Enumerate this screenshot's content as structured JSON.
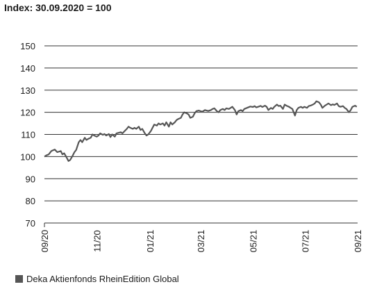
{
  "title": "Index: 30.09.2020 = 100",
  "colors": {
    "series": "#555555",
    "grid": "#333333",
    "axis": "#333333"
  },
  "chart_data": {
    "type": "line",
    "title": "Index: 30.09.2020 = 100",
    "xlabel": "",
    "ylabel": "",
    "ylim": [
      70,
      150
    ],
    "yticks": [
      70,
      80,
      90,
      100,
      110,
      120,
      130,
      140,
      150
    ],
    "xlim": [
      "2020-09-30",
      "2021-09-30"
    ],
    "xticks": [
      {
        "date": "2020-09-30",
        "label": "09/20"
      },
      {
        "date": "2020-11-30",
        "label": "11/20"
      },
      {
        "date": "2021-01-31",
        "label": "01/21"
      },
      {
        "date": "2021-03-31",
        "label": "03/21"
      },
      {
        "date": "2021-05-31",
        "label": "05/21"
      },
      {
        "date": "2021-07-31",
        "label": "07/21"
      },
      {
        "date": "2021-09-30",
        "label": "09/21"
      }
    ],
    "grid": "horizontal",
    "legend": "bottom-left",
    "series": [
      {
        "name": "Deka Aktienfonds RheinEdition Global",
        "points": [
          [
            "2020-09-30",
            100.0
          ],
          [
            "2020-10-02",
            100.5
          ],
          [
            "2020-10-05",
            101.0
          ],
          [
            "2020-10-08",
            102.5
          ],
          [
            "2020-10-12",
            103.2
          ],
          [
            "2020-10-15",
            102.0
          ],
          [
            "2020-10-19",
            102.5
          ],
          [
            "2020-10-21",
            101.0
          ],
          [
            "2020-10-23",
            101.5
          ],
          [
            "2020-10-26",
            99.5
          ],
          [
            "2020-10-28",
            98.0
          ],
          [
            "2020-10-30",
            98.5
          ],
          [
            "2020-11-02",
            100.5
          ],
          [
            "2020-11-04",
            102.0
          ],
          [
            "2020-11-06",
            103.0
          ],
          [
            "2020-11-09",
            106.5
          ],
          [
            "2020-11-11",
            107.5
          ],
          [
            "2020-11-13",
            106.5
          ],
          [
            "2020-11-16",
            108.5
          ],
          [
            "2020-11-18",
            107.5
          ],
          [
            "2020-11-20",
            108.0
          ],
          [
            "2020-11-23",
            108.5
          ],
          [
            "2020-11-25",
            110.0
          ],
          [
            "2020-11-27",
            109.5
          ],
          [
            "2020-11-30",
            109.0
          ],
          [
            "2020-12-02",
            109.5
          ],
          [
            "2020-12-04",
            110.5
          ],
          [
            "2020-12-07",
            109.8
          ],
          [
            "2020-12-09",
            110.2
          ],
          [
            "2020-12-11",
            109.5
          ],
          [
            "2020-12-14",
            110.2
          ],
          [
            "2020-12-16",
            108.8
          ],
          [
            "2020-12-18",
            110.0
          ],
          [
            "2020-12-21",
            109.0
          ],
          [
            "2020-12-23",
            110.5
          ],
          [
            "2020-12-28",
            111.0
          ],
          [
            "2020-12-30",
            110.5
          ],
          [
            "2021-01-04",
            112.5
          ],
          [
            "2021-01-06",
            113.5
          ],
          [
            "2021-01-08",
            113.0
          ],
          [
            "2021-01-11",
            112.5
          ],
          [
            "2021-01-13",
            113.0
          ],
          [
            "2021-01-15",
            112.5
          ],
          [
            "2021-01-18",
            113.5
          ],
          [
            "2021-01-20",
            112.0
          ],
          [
            "2021-01-22",
            112.5
          ],
          [
            "2021-01-25",
            110.5
          ],
          [
            "2021-01-27",
            109.5
          ],
          [
            "2021-01-29",
            110.0
          ],
          [
            "2021-02-01",
            111.5
          ],
          [
            "2021-02-03",
            113.0
          ],
          [
            "2021-02-05",
            114.5
          ],
          [
            "2021-02-08",
            114.0
          ],
          [
            "2021-02-10",
            115.0
          ],
          [
            "2021-02-12",
            114.5
          ],
          [
            "2021-02-15",
            115.0
          ],
          [
            "2021-02-17",
            114.0
          ],
          [
            "2021-02-19",
            115.5
          ],
          [
            "2021-02-22",
            113.5
          ],
          [
            "2021-02-24",
            115.5
          ],
          [
            "2021-02-26",
            114.5
          ],
          [
            "2021-03-01",
            115.5
          ],
          [
            "2021-03-03",
            116.5
          ],
          [
            "2021-03-05",
            117.0
          ],
          [
            "2021-03-08",
            117.5
          ],
          [
            "2021-03-10",
            119.0
          ],
          [
            "2021-03-12",
            120.0
          ],
          [
            "2021-03-15",
            119.5
          ],
          [
            "2021-03-17",
            119.0
          ],
          [
            "2021-03-19",
            117.5
          ],
          [
            "2021-03-22",
            118.0
          ],
          [
            "2021-03-24",
            119.5
          ],
          [
            "2021-03-26",
            120.5
          ],
          [
            "2021-03-29",
            120.8
          ],
          [
            "2021-03-31",
            120.5
          ],
          [
            "2021-04-02",
            120.3
          ],
          [
            "2021-04-05",
            121.0
          ],
          [
            "2021-04-07",
            120.8
          ],
          [
            "2021-04-09",
            120.6
          ],
          [
            "2021-04-12",
            121.0
          ],
          [
            "2021-04-14",
            121.5
          ],
          [
            "2021-04-16",
            121.8
          ],
          [
            "2021-04-19",
            120.5
          ],
          [
            "2021-04-21",
            120.0
          ],
          [
            "2021-04-23",
            121.0
          ],
          [
            "2021-04-26",
            121.5
          ],
          [
            "2021-04-28",
            121.0
          ],
          [
            "2021-04-30",
            121.8
          ],
          [
            "2021-05-03",
            121.5
          ],
          [
            "2021-05-05",
            122.0
          ],
          [
            "2021-05-07",
            122.5
          ],
          [
            "2021-05-10",
            121.0
          ],
          [
            "2021-05-12",
            119.0
          ],
          [
            "2021-05-14",
            120.5
          ],
          [
            "2021-05-17",
            121.0
          ],
          [
            "2021-05-19",
            120.5
          ],
          [
            "2021-05-21",
            121.5
          ],
          [
            "2021-05-24",
            122.0
          ],
          [
            "2021-05-26",
            122.3
          ],
          [
            "2021-05-28",
            122.6
          ],
          [
            "2021-05-31",
            122.4
          ],
          [
            "2021-06-02",
            122.8
          ],
          [
            "2021-06-04",
            122.2
          ],
          [
            "2021-06-07",
            122.6
          ],
          [
            "2021-06-09",
            122.9
          ],
          [
            "2021-06-11",
            122.4
          ],
          [
            "2021-06-14",
            123.0
          ],
          [
            "2021-06-16",
            122.5
          ],
          [
            "2021-06-18",
            121.0
          ],
          [
            "2021-06-21",
            122.0
          ],
          [
            "2021-06-23",
            121.5
          ],
          [
            "2021-06-25",
            122.5
          ],
          [
            "2021-06-28",
            123.5
          ],
          [
            "2021-06-30",
            122.8
          ],
          [
            "2021-07-02",
            123.0
          ],
          [
            "2021-07-05",
            121.5
          ],
          [
            "2021-07-07",
            123.5
          ],
          [
            "2021-07-09",
            123.0
          ],
          [
            "2021-07-12",
            122.5
          ],
          [
            "2021-07-14",
            122.0
          ],
          [
            "2021-07-16",
            121.5
          ],
          [
            "2021-07-19",
            118.5
          ],
          [
            "2021-07-21",
            121.0
          ],
          [
            "2021-07-23",
            122.0
          ],
          [
            "2021-07-26",
            122.5
          ],
          [
            "2021-07-28",
            122.0
          ],
          [
            "2021-07-30",
            122.5
          ],
          [
            "2021-08-02",
            122.0
          ],
          [
            "2021-08-04",
            122.8
          ],
          [
            "2021-08-06",
            123.0
          ],
          [
            "2021-08-09",
            123.5
          ],
          [
            "2021-08-11",
            124.0
          ],
          [
            "2021-08-13",
            125.0
          ],
          [
            "2021-08-16",
            124.5
          ],
          [
            "2021-08-18",
            123.5
          ],
          [
            "2021-08-20",
            122.0
          ],
          [
            "2021-08-23",
            123.0
          ],
          [
            "2021-08-25",
            123.5
          ],
          [
            "2021-08-27",
            124.0
          ],
          [
            "2021-08-30",
            123.2
          ],
          [
            "2021-09-01",
            123.6
          ],
          [
            "2021-09-03",
            123.3
          ],
          [
            "2021-09-06",
            124.0
          ],
          [
            "2021-09-08",
            122.8
          ],
          [
            "2021-09-10",
            122.5
          ],
          [
            "2021-09-13",
            122.8
          ],
          [
            "2021-09-15",
            122.0
          ],
          [
            "2021-09-17",
            121.5
          ],
          [
            "2021-09-20",
            120.0
          ],
          [
            "2021-09-22",
            121.0
          ],
          [
            "2021-09-24",
            122.5
          ],
          [
            "2021-09-27",
            123.0
          ],
          [
            "2021-09-29",
            122.5
          ]
        ]
      }
    ]
  }
}
